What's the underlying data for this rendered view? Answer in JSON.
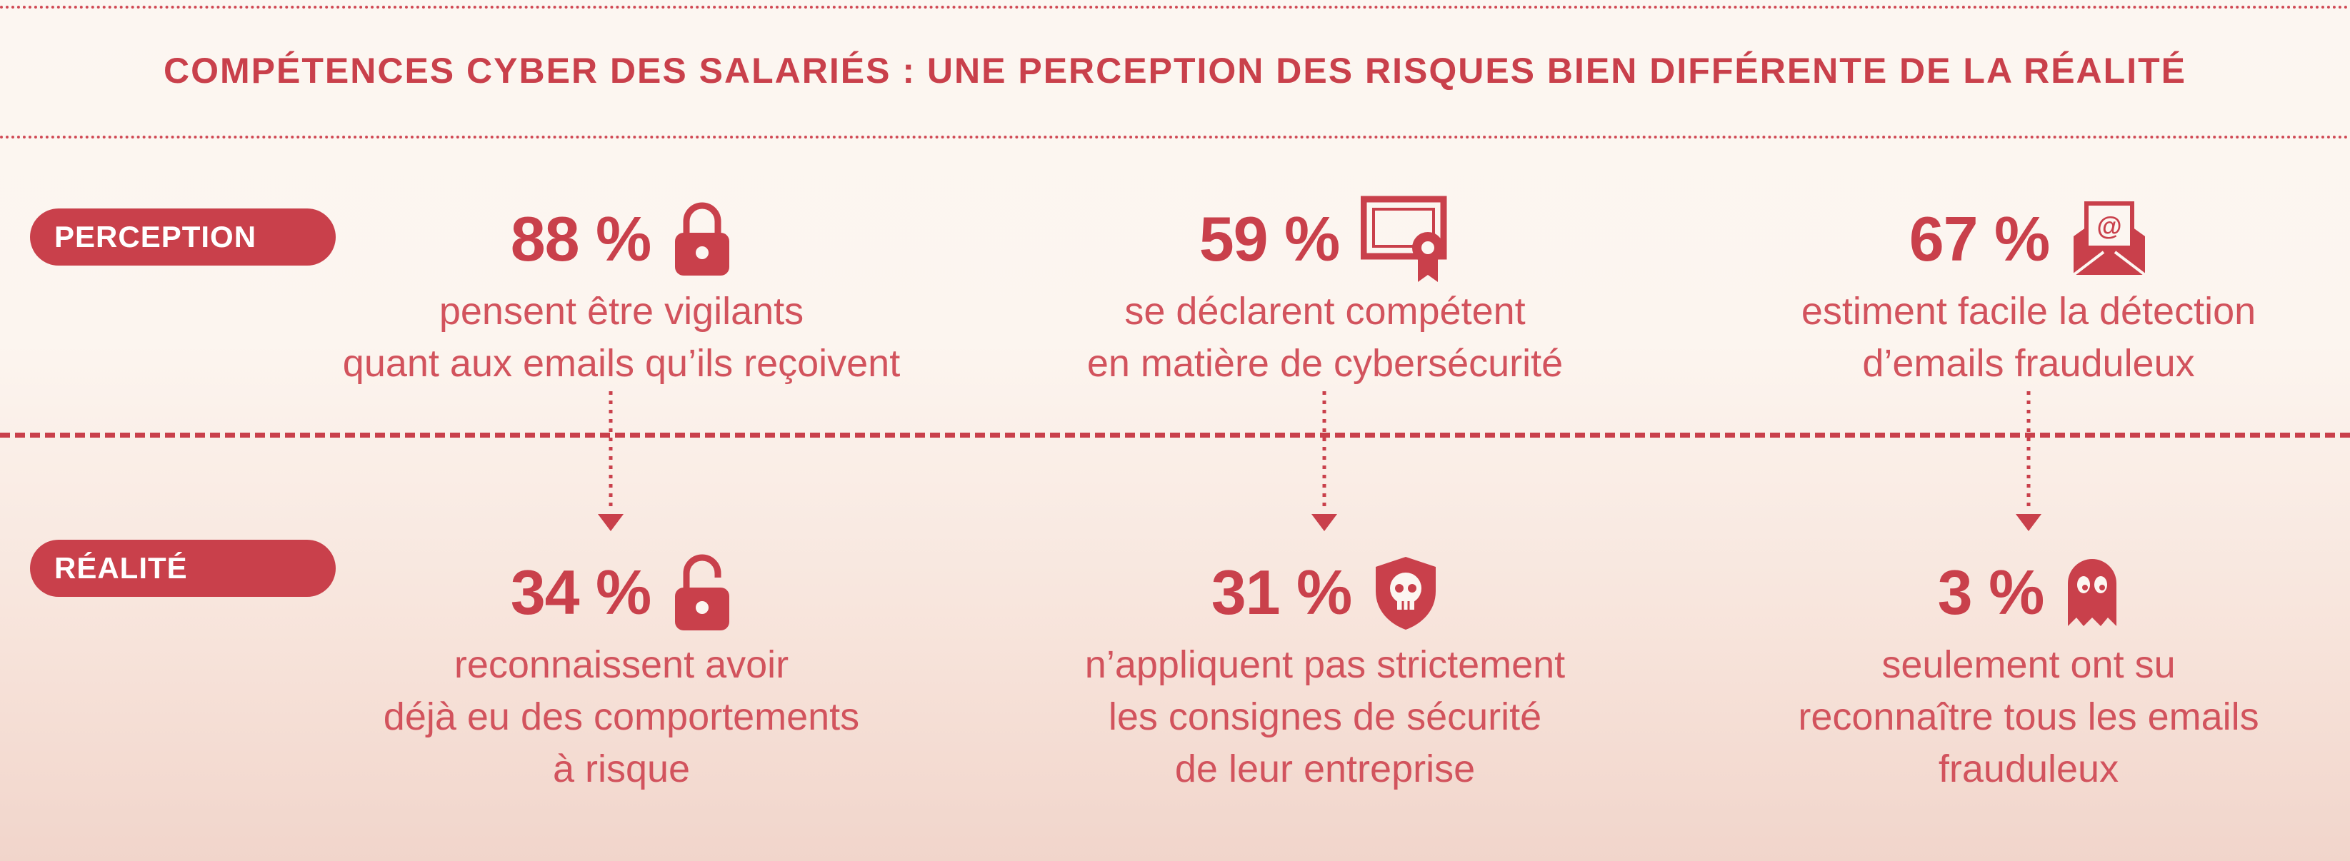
{
  "title": "COMPÉTENCES CYBER DES SALARIÉS : UNE PERCEPTION DES RISQUES BIEN DIFFÉRENTE DE LA RÉALITÉ",
  "colors": {
    "accent": "#c9404b",
    "text": "#d2535d",
    "background_top": "#fcf6f1",
    "background_bottom": "#f1d5cb"
  },
  "perception": {
    "label": "PERCEPTION",
    "items": [
      {
        "value": "88 %",
        "icon": "padlock-closed-icon",
        "line1": "pensent être vigilants",
        "line2": "quant aux emails qu’ils reçoivent"
      },
      {
        "value": "59 %",
        "icon": "certificate-icon",
        "line1": "se déclarent compétent",
        "line2": "en matière de cybersécurité"
      },
      {
        "value": "67 %",
        "icon": "email-envelope-icon",
        "line1": "estiment facile la détection",
        "line2": "d’emails frauduleux"
      }
    ]
  },
  "realite": {
    "label": "RÉALITÉ",
    "items": [
      {
        "value": "34 %",
        "icon": "padlock-open-icon",
        "line1": "reconnaissent avoir",
        "line2": "déjà eu des comportements",
        "line3": "à risque"
      },
      {
        "value": "31 %",
        "icon": "skull-shield-icon",
        "line1": "n’appliquent pas strictement",
        "line2": "les consignes de sécurité",
        "line3": "de leur entreprise"
      },
      {
        "value": "3 %",
        "icon": "ghost-icon",
        "line1": "seulement ont su",
        "line2": "reconnaître tous les emails",
        "line3": "frauduleux"
      }
    ]
  }
}
